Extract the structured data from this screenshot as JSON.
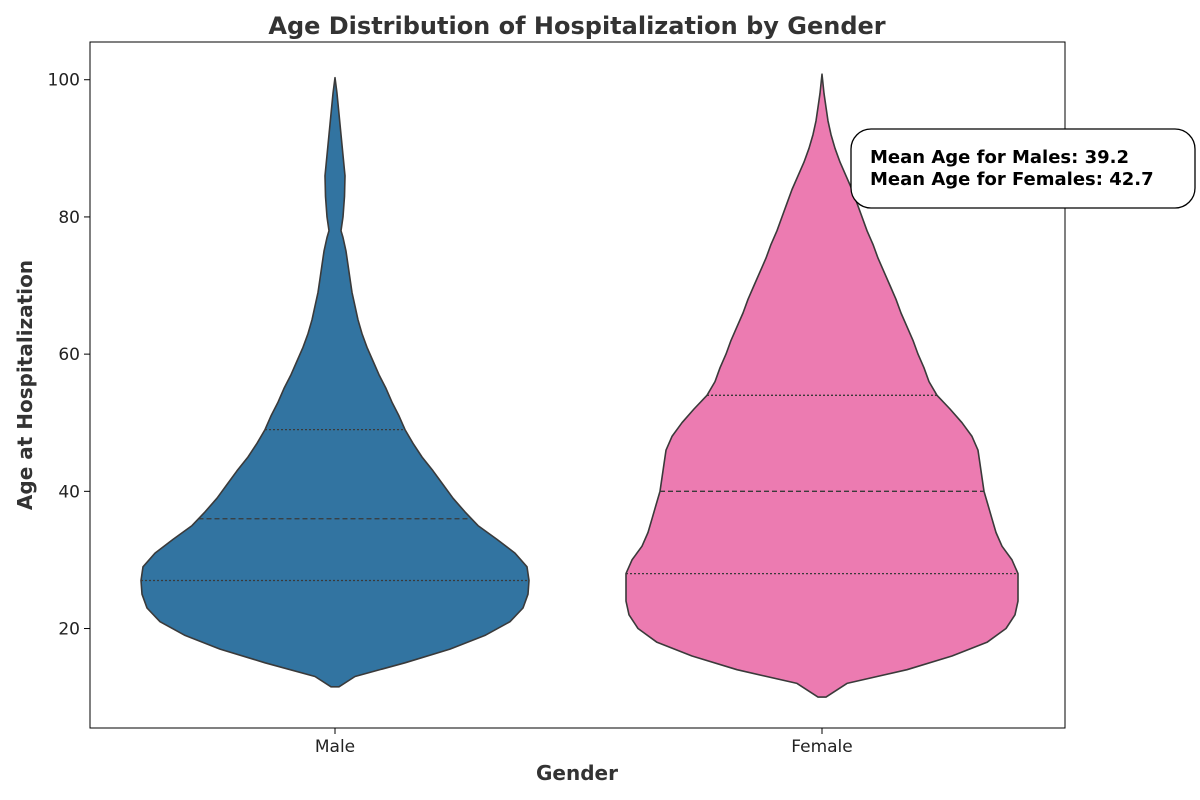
{
  "chart_data": {
    "type": "violin",
    "title": "Age Distribution of Hospitalization by Gender",
    "xlabel": "Gender",
    "ylabel": "Age at Hospitalization",
    "categories": [
      "Male",
      "Female"
    ],
    "ylim": [
      5.5,
      105.5
    ],
    "yticks": [
      20,
      40,
      60,
      80,
      100
    ],
    "grid": false,
    "violins": [
      {
        "name": "Male",
        "color": "#3274a1",
        "min": 11.5,
        "max": 100.3,
        "quartiles": [
          27,
          36,
          49
        ],
        "profile": [
          [
            11.5,
            4
          ],
          [
            13,
            20
          ],
          [
            15,
            70
          ],
          [
            17,
            115
          ],
          [
            19,
            150
          ],
          [
            21,
            175
          ],
          [
            23,
            188
          ],
          [
            25,
            193
          ],
          [
            27,
            194
          ],
          [
            29,
            192
          ],
          [
            31,
            180
          ],
          [
            33,
            162
          ],
          [
            35,
            143
          ],
          [
            37,
            130
          ],
          [
            39,
            118
          ],
          [
            41,
            108
          ],
          [
            43,
            98
          ],
          [
            45,
            87
          ],
          [
            47,
            78
          ],
          [
            49,
            70
          ],
          [
            51,
            64
          ],
          [
            53,
            57
          ],
          [
            55,
            51
          ],
          [
            57,
            44
          ],
          [
            59,
            38
          ],
          [
            61,
            32
          ],
          [
            63,
            27
          ],
          [
            65,
            23
          ],
          [
            67,
            20
          ],
          [
            69,
            17
          ],
          [
            71,
            15
          ],
          [
            73,
            13
          ],
          [
            75,
            11
          ],
          [
            77,
            8
          ],
          [
            78,
            6
          ],
          [
            80,
            8
          ],
          [
            83,
            9.5
          ],
          [
            86,
            10
          ],
          [
            89,
            8
          ],
          [
            92,
            6
          ],
          [
            95,
            4
          ],
          [
            98,
            2
          ],
          [
            100.3,
            0
          ]
        ]
      },
      {
        "name": "Female",
        "color": "#ec7bb1",
        "min": 10,
        "max": 100.8,
        "quartiles": [
          28,
          40,
          54
        ],
        "profile": [
          [
            10,
            4
          ],
          [
            12,
            25
          ],
          [
            14,
            85
          ],
          [
            16,
            130
          ],
          [
            18,
            165
          ],
          [
            20,
            184
          ],
          [
            22,
            193
          ],
          [
            24,
            196
          ],
          [
            26,
            196
          ],
          [
            28,
            196
          ],
          [
            30,
            190
          ],
          [
            32,
            180
          ],
          [
            34,
            174
          ],
          [
            36,
            170
          ],
          [
            38,
            166
          ],
          [
            40,
            162
          ],
          [
            42,
            160
          ],
          [
            44,
            158
          ],
          [
            46,
            156
          ],
          [
            48,
            150
          ],
          [
            50,
            140
          ],
          [
            52,
            128
          ],
          [
            54,
            115
          ],
          [
            56,
            107
          ],
          [
            58,
            102
          ],
          [
            60,
            96
          ],
          [
            62,
            91
          ],
          [
            64,
            85
          ],
          [
            66,
            79
          ],
          [
            68,
            74
          ],
          [
            70,
            68
          ],
          [
            72,
            62
          ],
          [
            74,
            56
          ],
          [
            76,
            51
          ],
          [
            78,
            45
          ],
          [
            80,
            40
          ],
          [
            82,
            35
          ],
          [
            84,
            30
          ],
          [
            86,
            24
          ],
          [
            88,
            18
          ],
          [
            90,
            13
          ],
          [
            92,
            9
          ],
          [
            94,
            6
          ],
          [
            96,
            4
          ],
          [
            98,
            2
          ],
          [
            100.8,
            0
          ]
        ]
      }
    ],
    "annotation": {
      "lines": [
        "Mean Age for Males: 39.2",
        "Mean Age for Females: 42.7"
      ]
    }
  }
}
